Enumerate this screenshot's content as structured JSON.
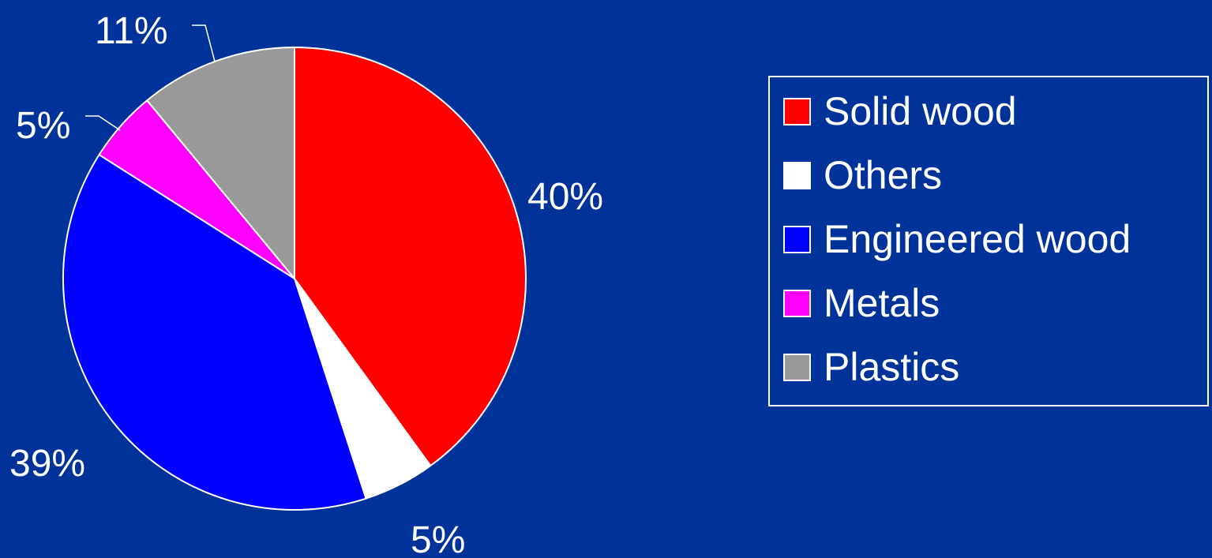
{
  "background": "#003399",
  "chart_data": {
    "type": "pie",
    "categories": [
      "Solid wood",
      "Others",
      "Engineered wood",
      "Metals",
      "Plastics"
    ],
    "values": [
      40,
      5,
      39,
      5,
      11
    ],
    "value_labels": [
      "40%",
      "5%",
      "39%",
      "5%",
      "11%"
    ],
    "colors": [
      "#ff0000",
      "#ffffff",
      "#0000ff",
      "#ff00ff",
      "#999999"
    ],
    "slice_border_color": "#ffffff",
    "start": "12 o'clock",
    "direction": "clockwise",
    "legend": {
      "placement": "right",
      "border_color": "#ffffff",
      "items": [
        "Solid wood",
        "Others",
        "Engineered wood",
        "Metals",
        "Plastics"
      ]
    }
  }
}
